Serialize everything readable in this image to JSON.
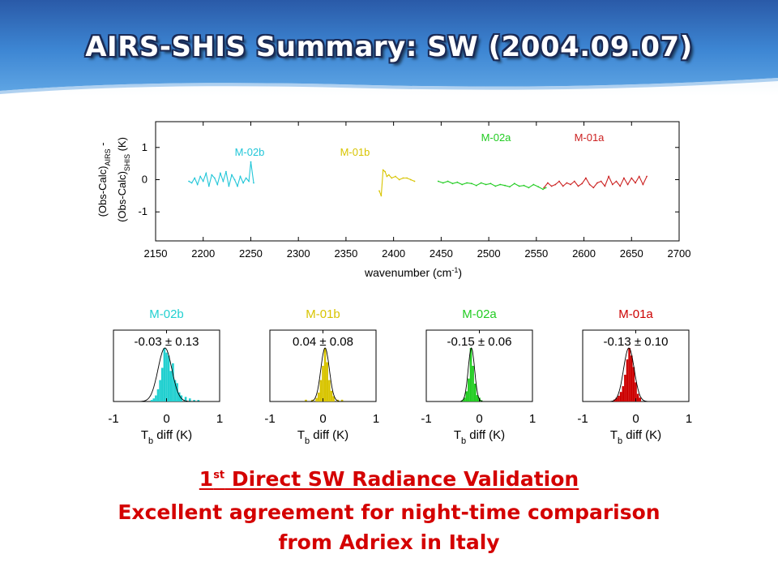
{
  "header": {
    "title": "AIRS-SHIS Summary: SW (2004.09.07)",
    "colors": {
      "band_top": "#2d5fae",
      "band_mid": "#3f8ad6",
      "band_light": "#bcd8f2"
    }
  },
  "chart_data": [
    {
      "type": "line",
      "xlabel_main": "wavenumber (cm",
      "xlabel_sup": "-1",
      "xlabel_tail": ")",
      "ylabel_line1_main": "(Obs-Calc)",
      "ylabel_line1_sub": "AIRS",
      "ylabel_line1_tail": " -",
      "ylabel_line2_main": "(Obs-Calc)",
      "ylabel_line2_sub": "SHIS",
      "ylabel_line2_tail": " (K)",
      "xlim": [
        2150,
        2700
      ],
      "ylim": [
        -1.9,
        1.8
      ],
      "xticks": [
        2150,
        2200,
        2250,
        2300,
        2350,
        2400,
        2450,
        2500,
        2550,
        2600,
        2650,
        2700
      ],
      "yticks": [
        -1,
        0,
        1
      ],
      "grid": false,
      "series": [
        {
          "name": "M-02b",
          "color": "#22c6d8",
          "x": [
            2185,
            2188,
            2191,
            2194,
            2197,
            2200,
            2203,
            2206,
            2209,
            2212,
            2215,
            2218,
            2221,
            2224,
            2227,
            2230,
            2233,
            2236,
            2239,
            2242,
            2245,
            2248,
            2250,
            2253
          ],
          "y": [
            -0.05,
            -0.1,
            0.05,
            -0.15,
            0.1,
            -0.05,
            0.2,
            -0.2,
            0.15,
            0.05,
            -0.15,
            0.2,
            -0.05,
            0.25,
            -0.2,
            0.15,
            0.0,
            -0.2,
            0.1,
            -0.1,
            0.05,
            -0.05,
            0.55,
            -0.1
          ]
        },
        {
          "name": "M-01b",
          "color": "#d8c400",
          "x": [
            2385,
            2387,
            2389,
            2391,
            2393,
            2395,
            2398,
            2402,
            2406,
            2410,
            2414,
            2418,
            2422
          ],
          "y": [
            -0.35,
            -0.5,
            0.3,
            0.25,
            0.1,
            0.15,
            0.05,
            0.1,
            0.0,
            0.05,
            0.05,
            0.0,
            -0.05
          ]
        },
        {
          "name": "M-02a",
          "color": "#22cc22",
          "x": [
            2447,
            2452,
            2457,
            2462,
            2467,
            2472,
            2477,
            2482,
            2487,
            2492,
            2497,
            2502,
            2507,
            2512,
            2517,
            2522,
            2527,
            2532,
            2537,
            2542,
            2547,
            2552,
            2557,
            2560
          ],
          "y": [
            -0.05,
            -0.1,
            -0.05,
            -0.12,
            -0.08,
            -0.15,
            -0.1,
            -0.12,
            -0.18,
            -0.1,
            -0.15,
            -0.12,
            -0.2,
            -0.15,
            -0.18,
            -0.22,
            -0.12,
            -0.2,
            -0.18,
            -0.25,
            -0.15,
            -0.22,
            -0.3,
            -0.25
          ]
        },
        {
          "name": "M-01a",
          "color": "#cc2222",
          "x": [
            2558,
            2562,
            2566,
            2570,
            2574,
            2578,
            2582,
            2586,
            2590,
            2594,
            2598,
            2602,
            2606,
            2610,
            2614,
            2618,
            2622,
            2626,
            2630,
            2634,
            2638,
            2642,
            2646,
            2650,
            2654,
            2658,
            2662,
            2666
          ],
          "y": [
            -0.25,
            -0.1,
            -0.2,
            -0.15,
            -0.05,
            -0.2,
            -0.1,
            -0.15,
            -0.05,
            -0.2,
            -0.12,
            0.05,
            -0.15,
            -0.25,
            -0.1,
            -0.05,
            -0.2,
            0.1,
            -0.15,
            -0.05,
            -0.2,
            0.05,
            -0.15,
            0.05,
            -0.1,
            0.1,
            -0.15,
            0.1
          ]
        }
      ]
    },
    {
      "type": "bar",
      "name": "M-02b",
      "color": "#22d0d0",
      "annotation": "-0.03 ± 0.13",
      "xlabel_main": "T",
      "xlabel_sub": "b",
      "xlabel_tail": " diff (K)",
      "xlim": [
        -1,
        1
      ],
      "xticks": [
        -1,
        0,
        1
      ],
      "bin_centers": [
        -0.28,
        -0.24,
        -0.2,
        -0.16,
        -0.12,
        -0.08,
        -0.04,
        0.0,
        0.04,
        0.08,
        0.12,
        0.16,
        0.2,
        0.24,
        0.28,
        0.36,
        0.44,
        0.52,
        0.6
      ],
      "counts": [
        1,
        2,
        4,
        8,
        14,
        22,
        35,
        32,
        30,
        20,
        25,
        14,
        12,
        6,
        4,
        3,
        2,
        1,
        1
      ],
      "gaussian": {
        "mean": -0.03,
        "sigma": 0.13
      }
    },
    {
      "type": "bar",
      "name": "M-01b",
      "color": "#d8c400",
      "annotation": "0.04 ± 0.08",
      "xlabel_main": "T",
      "xlabel_sub": "b",
      "xlabel_tail": " diff (K)",
      "xlim": [
        -1,
        1
      ],
      "xticks": [
        -1,
        0,
        1
      ],
      "bin_centers": [
        -0.32,
        -0.2,
        -0.12,
        -0.08,
        -0.04,
        0.0,
        0.04,
        0.08,
        0.12,
        0.16,
        0.2,
        0.28,
        0.36
      ],
      "counts": [
        1,
        1,
        2,
        5,
        12,
        20,
        30,
        22,
        12,
        6,
        3,
        1,
        1
      ],
      "gaussian": {
        "mean": 0.04,
        "sigma": 0.08
      }
    },
    {
      "type": "bar",
      "name": "M-02a",
      "color": "#22cc22",
      "annotation": "-0.15 ± 0.06",
      "xlabel_main": "T",
      "xlabel_sub": "b",
      "xlabel_tail": " diff (K)",
      "xlim": [
        -1,
        1
      ],
      "xticks": [
        -1,
        0,
        1
      ],
      "bin_centers": [
        -0.32,
        -0.28,
        -0.24,
        -0.2,
        -0.16,
        -0.12,
        -0.08,
        -0.04,
        0.0,
        0.04
      ],
      "counts": [
        1,
        3,
        8,
        18,
        42,
        28,
        14,
        5,
        3,
        1
      ],
      "gaussian": {
        "mean": -0.15,
        "sigma": 0.06
      }
    },
    {
      "type": "bar",
      "name": "M-01a",
      "color": "#cc0000",
      "annotation": "-0.13 ± 0.10",
      "xlabel_main": "T",
      "xlabel_sub": "b",
      "xlabel_tail": " diff (K)",
      "xlim": [
        -1,
        1
      ],
      "xticks": [
        -1,
        0,
        1
      ],
      "bin_centers": [
        -0.4,
        -0.36,
        -0.32,
        -0.28,
        -0.24,
        -0.2,
        -0.16,
        -0.12,
        -0.08,
        -0.04,
        0.0,
        0.04,
        0.08
      ],
      "counts": [
        1,
        2,
        3,
        5,
        8,
        14,
        22,
        28,
        24,
        18,
        10,
        4,
        2
      ],
      "gaussian": {
        "mean": -0.13,
        "sigma": 0.1
      }
    }
  ],
  "captions": {
    "line1_pre": "1",
    "line1_sup": "st",
    "line1_post": " Direct SW Radiance Validation",
    "line2": "Excellent agreement for night-time comparison",
    "line3": "from Adriex in Italy",
    "color": "#d40000"
  }
}
